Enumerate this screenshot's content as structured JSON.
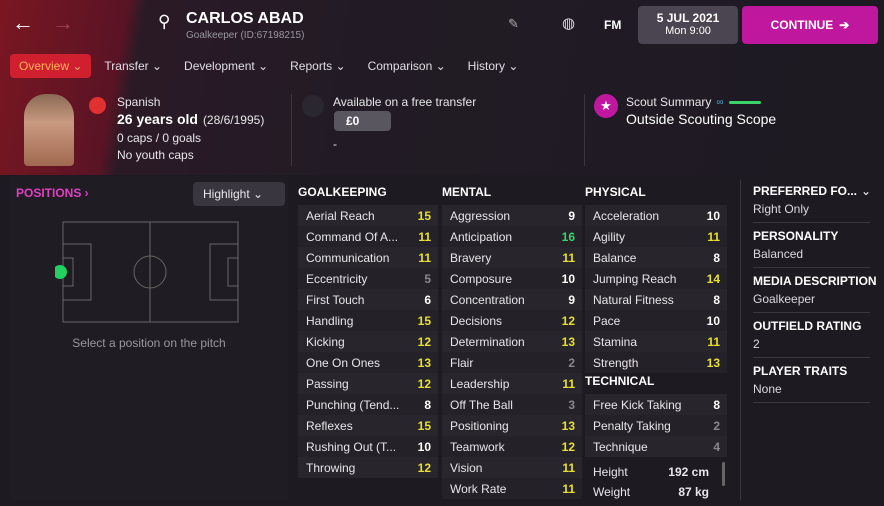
{
  "header": {
    "name": "CARLOS ABAD",
    "subtitle": "Goalkeeper (ID:67198215)",
    "date": "5 JUL 2021",
    "time": "Mon 9:00",
    "fm_label": "FM",
    "continue_label": "CONTINUE"
  },
  "tabs": [
    {
      "label": "Overview"
    },
    {
      "label": "Transfer"
    },
    {
      "label": "Development"
    },
    {
      "label": "Reports"
    },
    {
      "label": "Comparison"
    },
    {
      "label": "History"
    }
  ],
  "info": {
    "nationality": "Spanish",
    "age": "26 years old",
    "dob": "(28/6/1995)",
    "caps": "0 caps / 0 goals",
    "youth": "No youth caps",
    "transfer_status": "Available on a free transfer",
    "value": "£0",
    "value_sub": "-",
    "scout_title": "Scout Summary",
    "scout_value": "Outside Scouting Scope"
  },
  "positions": {
    "title": "POSITIONS",
    "highlight": "Highlight",
    "hint": "Select a position on the pitch"
  },
  "colors": {
    "accent": "#c0179f",
    "active_tab": "#d0202f",
    "high": "#e8e030",
    "elite": "#3ad36a",
    "low": "#8a8790",
    "normal": "#ffffff"
  },
  "attributes": {
    "goalkeeping": {
      "title": "GOALKEEPING",
      "items": [
        [
          "Aerial Reach",
          15
        ],
        [
          "Command Of A...",
          11
        ],
        [
          "Communication",
          11
        ],
        [
          "Eccentricity",
          5
        ],
        [
          "First Touch",
          6
        ],
        [
          "Handling",
          15
        ],
        [
          "Kicking",
          12
        ],
        [
          "One On Ones",
          13
        ],
        [
          "Passing",
          12
        ],
        [
          "Punching (Tend...",
          8
        ],
        [
          "Reflexes",
          15
        ],
        [
          "Rushing Out (T...",
          10
        ],
        [
          "Throwing",
          12
        ]
      ]
    },
    "mental": {
      "title": "MENTAL",
      "items": [
        [
          "Aggression",
          9
        ],
        [
          "Anticipation",
          16
        ],
        [
          "Bravery",
          11
        ],
        [
          "Composure",
          10
        ],
        [
          "Concentration",
          9
        ],
        [
          "Decisions",
          12
        ],
        [
          "Determination",
          13
        ],
        [
          "Flair",
          2
        ],
        [
          "Leadership",
          11
        ],
        [
          "Off The Ball",
          3
        ],
        [
          "Positioning",
          13
        ],
        [
          "Teamwork",
          12
        ],
        [
          "Vision",
          11
        ],
        [
          "Work Rate",
          11
        ]
      ]
    },
    "physical": {
      "title": "PHYSICAL",
      "items": [
        [
          "Acceleration",
          10
        ],
        [
          "Agility",
          11
        ],
        [
          "Balance",
          8
        ],
        [
          "Jumping Reach",
          14
        ],
        [
          "Natural Fitness",
          8
        ],
        [
          "Pace",
          10
        ],
        [
          "Stamina",
          11
        ],
        [
          "Strength",
          13
        ]
      ]
    },
    "technical": {
      "title": "TECHNICAL",
      "items": [
        [
          "Free Kick Taking",
          8
        ],
        [
          "Penalty Taking",
          2
        ],
        [
          "Technique",
          4
        ]
      ]
    }
  },
  "body": {
    "height_label": "Height",
    "height": "192 cm",
    "weight_label": "Weight",
    "weight": "87 kg"
  },
  "right_panel": [
    {
      "k": "PREFERRED FO...",
      "v": "Right Only"
    },
    {
      "k": "PERSONALITY",
      "v": "Balanced"
    },
    {
      "k": "MEDIA DESCRIPTION",
      "v": "Goalkeeper"
    },
    {
      "k": "OUTFIELD RATING",
      "v": "2"
    },
    {
      "k": "PLAYER TRAITS",
      "v": "None"
    }
  ]
}
